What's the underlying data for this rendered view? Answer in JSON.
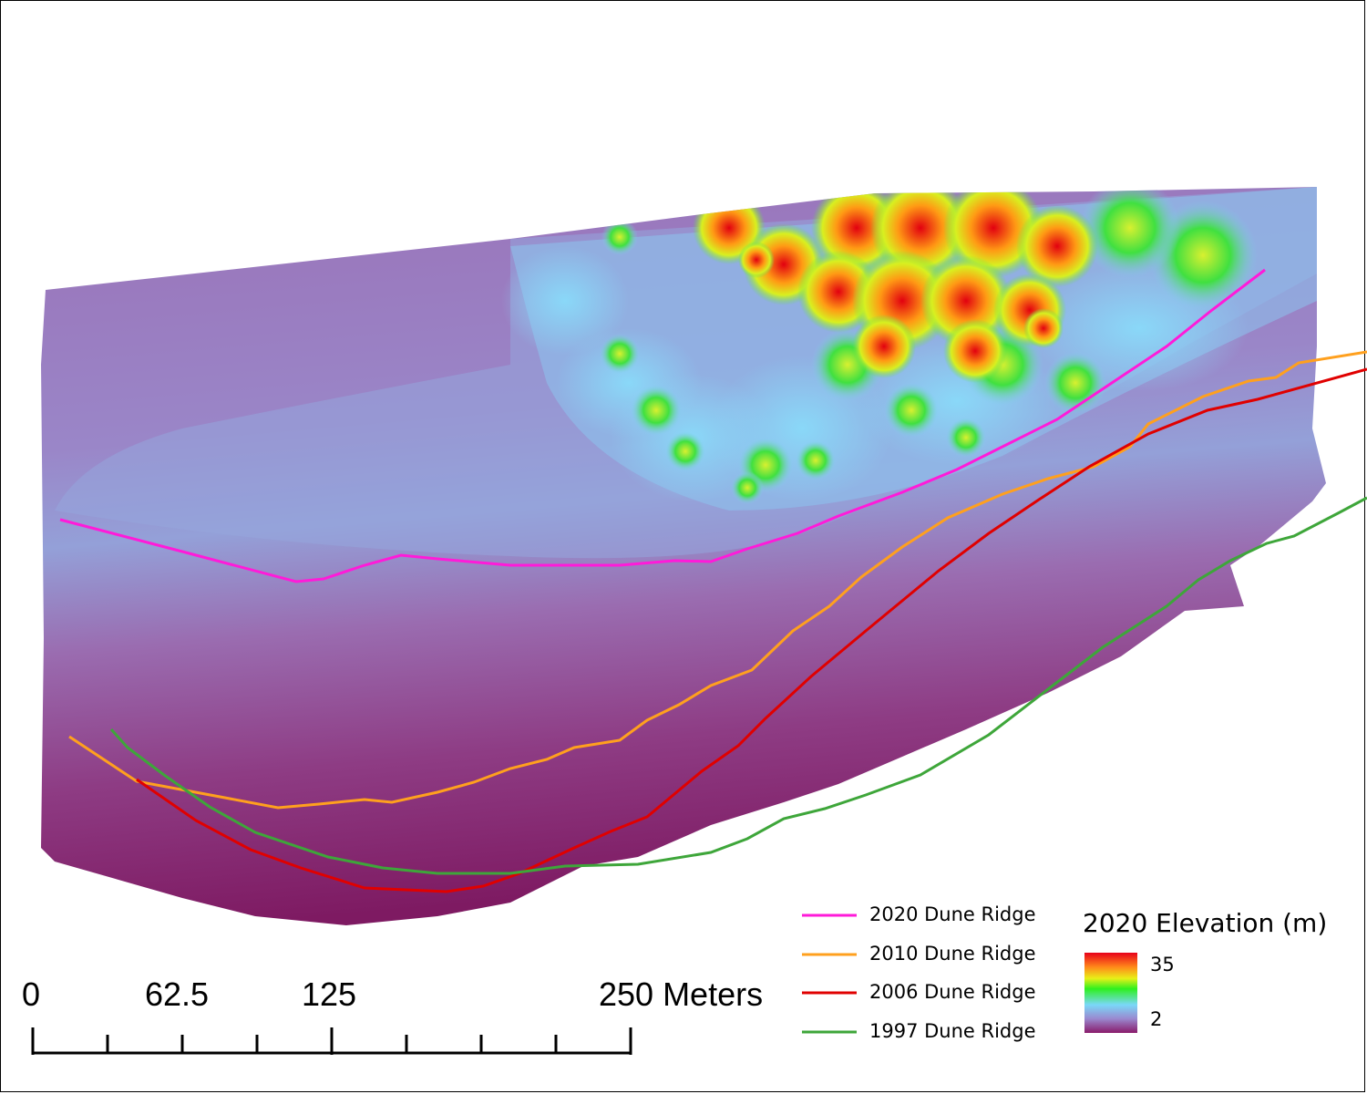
{
  "legend": {
    "items": [
      {
        "label": "2020 Dune Ridge",
        "color": "#ff1ad9"
      },
      {
        "label": "2010 Dune Ridge",
        "color": "#ffa01e"
      },
      {
        "label": "2006 Dune Ridge",
        "color": "#e00000"
      },
      {
        "label": "1997 Dune Ridge",
        "color": "#3ea63a"
      }
    ]
  },
  "elevation_legend": {
    "title": "2020 Elevation (m)",
    "max_label": "35",
    "min_label": "2",
    "ramp_colors": [
      "#e8001a",
      "#ff8a1a",
      "#e8f018",
      "#2ef01e",
      "#7ad8f8",
      "#9a8ad0",
      "#8a1a6a"
    ]
  },
  "scale_bar": {
    "labels": [
      "0",
      "62.5",
      "125",
      "250 Meters"
    ]
  },
  "colors": {
    "terrain_low": "#8a2a72",
    "terrain_mid": "#9a7ec4",
    "terrain_high_blue": "#88c8f0"
  }
}
